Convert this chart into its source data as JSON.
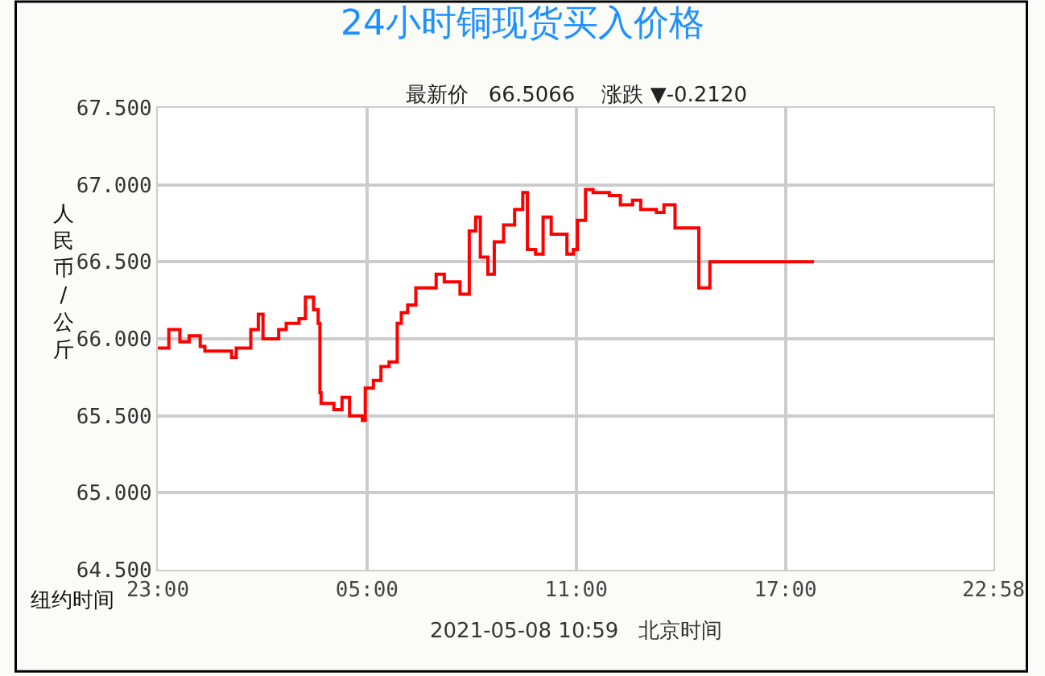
{
  "chart_data": {
    "type": "step",
    "title": "24小时铜现货买入价格",
    "subtitle": "最新价   66.5066    涨跌 ▼-0.2120",
    "xlabel": "纽约时间",
    "ylabel": "人民币/公斤",
    "annotations": [
      "2021-05-08 10:59   北京时间"
    ],
    "x": [
      "2021-05-06T23:00",
      "2021-05-06T23:19",
      "2021-05-06T23:38",
      "2021-05-06T23:54",
      "2021-05-07T00:13",
      "2021-05-07T00:21",
      "2021-05-07T01:07",
      "2021-05-07T01:15",
      "2021-05-07T01:40",
      "2021-05-07T01:53",
      "2021-05-07T02:01",
      "2021-05-07T02:28",
      "2021-05-07T02:41",
      "2021-05-07T03:03",
      "2021-05-07T03:14",
      "2021-05-07T03:28",
      "2021-05-07T03:36",
      "2021-05-07T03:39",
      "2021-05-07T03:41",
      "2021-05-07T04:03",
      "2021-05-07T04:17",
      "2021-05-07T04:30",
      "2021-05-07T04:52",
      "2021-05-07T04:57",
      "2021-05-07T05:11",
      "2021-05-07T05:24",
      "2021-05-07T05:38",
      "2021-05-07T05:52",
      "2021-05-07T05:59",
      "2021-05-07T06:10",
      "2021-05-07T06:24",
      "2021-05-07T06:37",
      "2021-05-07T06:59",
      "2021-05-07T07:13",
      "2021-05-07T07:40",
      "2021-05-07T07:56",
      "2021-05-07T08:07",
      "2021-05-07T08:15",
      "2021-05-07T08:28",
      "2021-05-07T08:39",
      "2021-05-07T08:55",
      "2021-05-07T09:14",
      "2021-05-07T09:28",
      "2021-05-07T09:36",
      "2021-05-07T09:50",
      "2021-05-07T10:03",
      "2021-05-07T10:17",
      "2021-05-07T10:35",
      "2021-05-07T10:44",
      "2021-05-07T10:55",
      "2021-05-07T11:02",
      "2021-05-07T11:16",
      "2021-05-07T11:29",
      "2021-05-07T11:57",
      "2021-05-07T12:16",
      "2021-05-07T12:37",
      "2021-05-07T12:51",
      "2021-05-07T13:18",
      "2021-05-07T13:31",
      "2021-05-07T13:50",
      "2021-05-07T14:28",
      "2021-05-07T14:31",
      "2021-05-07T14:47",
      "2021-05-07T14:50",
      "2021-05-07T17:49"
    ],
    "series": [
      {
        "color": "#ff0000",
        "values": [
          65.94,
          66.06,
          65.98,
          66.02,
          65.95,
          65.92,
          65.88,
          65.94,
          66.06,
          66.16,
          66.0,
          66.06,
          66.1,
          66.13,
          66.27,
          66.19,
          66.1,
          65.65,
          65.58,
          65.54,
          65.62,
          65.5,
          65.47,
          65.68,
          65.73,
          65.82,
          65.85,
          66.1,
          66.17,
          66.22,
          66.33,
          66.33,
          66.42,
          66.37,
          66.29,
          66.7,
          66.79,
          66.53,
          66.42,
          66.63,
          66.74,
          66.84,
          66.95,
          66.58,
          66.55,
          66.79,
          66.68,
          66.68,
          66.55,
          66.58,
          66.77,
          66.97,
          66.95,
          66.93,
          66.87,
          66.9,
          66.84,
          66.82,
          66.87,
          66.72,
          66.72,
          66.33,
          66.33,
          66.5,
          66.5
        ]
      }
    ],
    "xlim": [
      "2021-05-06T23:00",
      "2021-05-07T22:58"
    ],
    "xticks": [
      {
        "value": "2021-05-06T23:00",
        "label": "23:00"
      },
      {
        "value": "2021-05-07T05:00",
        "label": "05:00"
      },
      {
        "value": "2021-05-07T11:00",
        "label": "11:00"
      },
      {
        "value": "2021-05-07T17:00",
        "label": "17:00"
      },
      {
        "value": "2021-05-07T22:58",
        "label": "22:58"
      }
    ],
    "ylim": [
      64.5,
      67.5
    ],
    "yticks": [
      {
        "value": 64.5,
        "label": "64.500"
      },
      {
        "value": 65.0,
        "label": "65.000"
      },
      {
        "value": 65.5,
        "label": "65.500"
      },
      {
        "value": 66.0,
        "label": "66.000"
      },
      {
        "value": 66.5,
        "label": "66.500"
      },
      {
        "value": 67.0,
        "label": "67.000"
      },
      {
        "value": 67.5,
        "label": "67.500"
      }
    ],
    "grid": true
  }
}
